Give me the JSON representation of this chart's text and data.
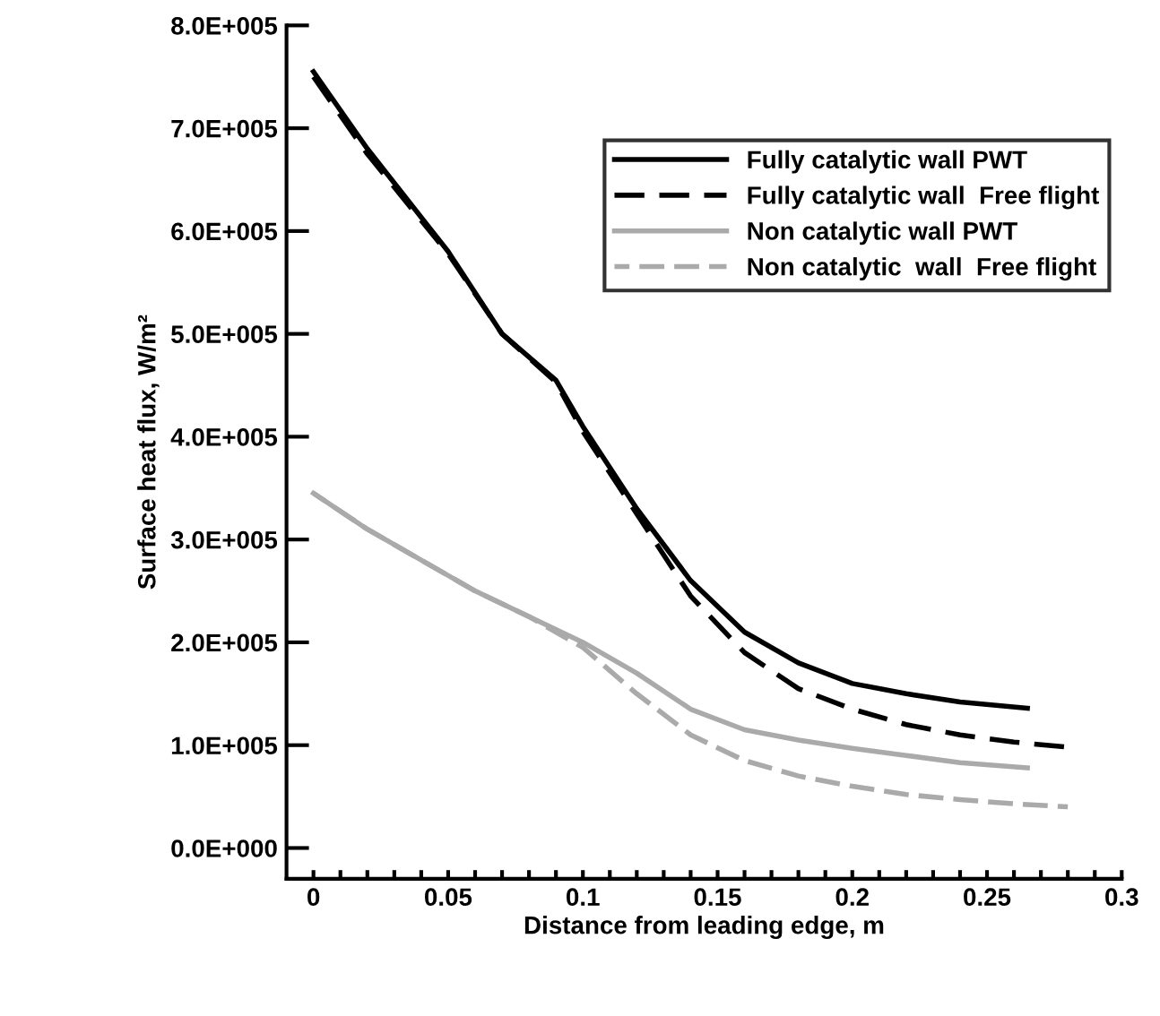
{
  "chart_data": {
    "type": "line",
    "xlabel": "Distance from leading edge, m",
    "ylabel": "Surface heat flux, W/m²",
    "series": [
      {
        "name": "Fully catalytic wall PWT",
        "color": "#000000",
        "line_style": "solid",
        "x": [
          0,
          0.02,
          0.05,
          0.07,
          0.09,
          0.1,
          0.12,
          0.14,
          0.16,
          0.18,
          0.2,
          0.22,
          0.24,
          0.265
        ],
        "values": [
          755000,
          680000,
          580000,
          500000,
          455000,
          410000,
          330000,
          260000,
          210000,
          180000,
          160000,
          150000,
          142000,
          136000
        ]
      },
      {
        "name": "Fully catalytic wall  Free flight",
        "color": "#000000",
        "line_style": "dashed",
        "x": [
          0,
          0.02,
          0.05,
          0.07,
          0.09,
          0.1,
          0.12,
          0.14,
          0.16,
          0.18,
          0.2,
          0.22,
          0.24,
          0.26,
          0.28
        ],
        "values": [
          750000,
          675000,
          578000,
          500000,
          453000,
          405000,
          325000,
          245000,
          190000,
          155000,
          135000,
          120000,
          110000,
          103000,
          98000
        ]
      },
      {
        "name": "Non catalytic wall PWT",
        "color": "#aaaaaa",
        "line_style": "solid",
        "x": [
          0,
          0.02,
          0.04,
          0.06,
          0.08,
          0.1,
          0.12,
          0.14,
          0.16,
          0.18,
          0.2,
          0.22,
          0.24,
          0.265
        ],
        "values": [
          345000,
          310000,
          280000,
          250000,
          225000,
          200000,
          170000,
          135000,
          115000,
          105000,
          97000,
          90000,
          83000,
          78000
        ]
      },
      {
        "name": "Non catalytic  wall  Free flight",
        "color": "#aaaaaa",
        "line_style": "dashed",
        "x": [
          0,
          0.02,
          0.04,
          0.06,
          0.08,
          0.1,
          0.12,
          0.14,
          0.16,
          0.18,
          0.2,
          0.22,
          0.24,
          0.26,
          0.28
        ],
        "values": [
          345000,
          310000,
          280000,
          250000,
          225000,
          195000,
          150000,
          110000,
          85000,
          70000,
          60000,
          52000,
          47000,
          43000,
          40000
        ]
      }
    ],
    "xlim": [
      -0.01,
      0.3
    ],
    "ylim": [
      -30000,
      800000
    ],
    "xticks": [
      0,
      {
        "value": 0.01,
        "label": null
      },
      {
        "value": 0.02,
        "label": null
      },
      {
        "value": 0.03,
        "label": null
      },
      {
        "value": 0.04,
        "label": null
      },
      0.05,
      {
        "value": 0.06,
        "label": null
      },
      {
        "value": 0.07,
        "label": null
      },
      {
        "value": 0.08,
        "label": null
      },
      {
        "value": 0.09,
        "label": null
      },
      0.1,
      {
        "value": 0.11,
        "label": null
      },
      {
        "value": 0.12,
        "label": null
      },
      {
        "value": 0.13,
        "label": null
      },
      {
        "value": 0.14,
        "label": null
      },
      0.15,
      {
        "value": 0.16,
        "label": null
      },
      {
        "value": 0.17,
        "label": null
      },
      {
        "value": 0.18,
        "label": null
      },
      {
        "value": 0.19,
        "label": null
      },
      0.2,
      {
        "value": 0.21,
        "label": null
      },
      {
        "value": 0.22,
        "label": null
      },
      {
        "value": 0.23,
        "label": null
      },
      {
        "value": 0.24,
        "label": null
      },
      0.25,
      {
        "value": 0.26,
        "label": null
      },
      {
        "value": 0.27,
        "label": null
      },
      {
        "value": 0.28,
        "label": null
      },
      {
        "value": 0.29,
        "label": null
      },
      0.3
    ],
    "yticks": [
      {
        "value": 0,
        "label": "0.0E+000"
      },
      {
        "value": 100000,
        "label": "1.0E+005"
      },
      {
        "value": 200000,
        "label": "2.0E+005"
      },
      {
        "value": 300000,
        "label": "3.0E+005"
      },
      {
        "value": 400000,
        "label": "4.0E+005"
      },
      {
        "value": 500000,
        "label": "5.0E+005"
      },
      {
        "value": 600000,
        "label": "6.0E+005"
      },
      {
        "value": 700000,
        "label": "7.0E+005"
      },
      {
        "value": 800000,
        "label": "8.0E+005"
      }
    ],
    "grid": false,
    "legend": "top right"
  }
}
